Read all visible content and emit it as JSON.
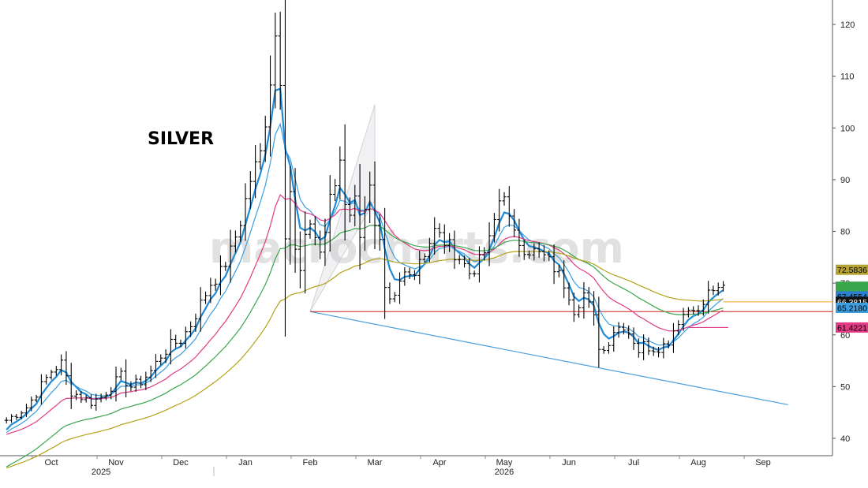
{
  "chart_data": {
    "type": "bar",
    "title": "SILVER",
    "watermark": "macrocharts.com",
    "ylim": [
      37.5,
      125
    ],
    "y_ticks": [
      40,
      50,
      60,
      70,
      80,
      90,
      100,
      110,
      120
    ],
    "x_month_labels": [
      {
        "label": "Oct",
        "week": 0
      },
      {
        "label": "Nov",
        "week": 13
      },
      {
        "label": "Dec",
        "week": 26
      },
      {
        "label": "Jan",
        "week": 39
      },
      {
        "label": "Feb",
        "week": 52
      },
      {
        "label": "Mar",
        "week": 65
      },
      {
        "label": "Apr",
        "week": 78
      },
      {
        "label": "May",
        "week": 91
      },
      {
        "label": "Jun",
        "week": 104
      },
      {
        "label": "Jul",
        "week": 117
      },
      {
        "label": "Aug",
        "week": 130
      },
      {
        "label": "Sep",
        "week": 143
      }
    ],
    "x_year_labels": [
      {
        "label": "2025",
        "week": 10
      },
      {
        "label": "2026",
        "week": 91
      }
    ],
    "price_anchors": [
      [
        -9,
        43.5
      ],
      [
        -5,
        46
      ],
      [
        0,
        53
      ],
      [
        2,
        54.5
      ],
      [
        4,
        49
      ],
      [
        6,
        48
      ],
      [
        8,
        47
      ],
      [
        10,
        48
      ],
      [
        12,
        50
      ],
      [
        14,
        52
      ],
      [
        16,
        50
      ],
      [
        18,
        51
      ],
      [
        20,
        53
      ],
      [
        22,
        56
      ],
      [
        24,
        58
      ],
      [
        26,
        59
      ],
      [
        28,
        62
      ],
      [
        30,
        66
      ],
      [
        32,
        70
      ],
      [
        34,
        72
      ],
      [
        36,
        76
      ],
      [
        38,
        82
      ],
      [
        40,
        90
      ],
      [
        42,
        95
      ],
      [
        43.5,
        105
      ],
      [
        44.5,
        114
      ],
      [
        45,
        118
      ],
      [
        46,
        110
      ],
      [
        47,
        80
      ],
      [
        48,
        88
      ],
      [
        49,
        76
      ],
      [
        50,
        72
      ],
      [
        51,
        78
      ],
      [
        52,
        82
      ],
      [
        53,
        79
      ],
      [
        54,
        76
      ],
      [
        55,
        80
      ],
      [
        56,
        86
      ],
      [
        57,
        89
      ],
      [
        58,
        94
      ],
      [
        59,
        86
      ],
      [
        60,
        84
      ],
      [
        61,
        86
      ],
      [
        62,
        80
      ],
      [
        63,
        85
      ],
      [
        64,
        88
      ],
      [
        65,
        80
      ],
      [
        66,
        77
      ],
      [
        67,
        68
      ],
      [
        68,
        66
      ],
      [
        69,
        67
      ],
      [
        70,
        70
      ],
      [
        71,
        72
      ],
      [
        72,
        73
      ],
      [
        73,
        72
      ],
      [
        74,
        75
      ],
      [
        75,
        76
      ],
      [
        76,
        78
      ],
      [
        77,
        80
      ],
      [
        78,
        79
      ],
      [
        80,
        77
      ],
      [
        82,
        75
      ],
      [
        84,
        72
      ],
      [
        86,
        74
      ],
      [
        88,
        78
      ],
      [
        90,
        86
      ],
      [
        91,
        88
      ],
      [
        92,
        82
      ],
      [
        93,
        79
      ],
      [
        95,
        77
      ],
      [
        97,
        76
      ],
      [
        99,
        75
      ],
      [
        101,
        73
      ],
      [
        103,
        70
      ],
      [
        104,
        68
      ],
      [
        105,
        65
      ],
      [
        107,
        68
      ],
      [
        109,
        63
      ],
      [
        110,
        58
      ],
      [
        111,
        57
      ],
      [
        112,
        59
      ],
      [
        113,
        61
      ],
      [
        115,
        62
      ],
      [
        117,
        59
      ],
      [
        118,
        57
      ],
      [
        119,
        58
      ],
      [
        121,
        57.5
      ],
      [
        123,
        58
      ],
      [
        124,
        59
      ],
      [
        125,
        61
      ],
      [
        126,
        63
      ],
      [
        127,
        64
      ],
      [
        128,
        65
      ],
      [
        129,
        66
      ],
      [
        130,
        64
      ],
      [
        131,
        66
      ],
      [
        132,
        68
      ],
      [
        133,
        69
      ],
      [
        134,
        68
      ],
      [
        135,
        69
      ]
    ],
    "price_seed": 7,
    "series": [
      {
        "name": "",
        "color": "#1f8ad6",
        "period": 4,
        "line_width": 2.2
      },
      {
        "name": "",
        "color": "#3a9ee0",
        "period": 8,
        "line_width": 1.2
      },
      {
        "name": "",
        "color": "#e23a84",
        "period": 19,
        "line_width": 1.2
      },
      {
        "name": "",
        "color": "#3aa64b",
        "period": 33,
        "line_width": 1.2
      },
      {
        "name": "",
        "color": "#b3a21a",
        "period": 56,
        "line_width": 1.2
      }
    ],
    "right_tags": [
      {
        "text": "72.5836",
        "value": 72.5836,
        "bg": "#b5a230",
        "fg": "#000000"
      },
      {
        "text": "",
        "value": 69.3,
        "bg": "#3aa64b",
        "fg": "#000000"
      },
      {
        "text": "67.4554",
        "value": 67.4554,
        "bg": "#2d7fd0",
        "fg": "#000000"
      },
      {
        "text": "66.3815",
        "value": 66.3815,
        "bg": "#111111",
        "fg": "#ffffff"
      },
      {
        "text": "65.2180",
        "value": 65.218,
        "bg": "#3a9ee0",
        "fg": "#000000"
      },
      {
        "text": "61.4221",
        "value": 61.4221,
        "bg": "#e23a84",
        "fg": "#000000"
      }
    ],
    "trendline": {
      "from": [
        52,
        64.5
      ],
      "to": [
        148,
        46.5
      ],
      "color": "#4a9ede"
    },
    "support_line": {
      "value": 64.5,
      "from_week": 52,
      "color": "#cc2222"
    },
    "last_price_line": {
      "value": 66.3815,
      "from_week": 135,
      "color": "#f0a020"
    },
    "pink_stub": {
      "value": 61.4221,
      "from_week": 128,
      "to_week": 136,
      "color": "#e23a84"
    },
    "shaded_flag": [
      [
        52,
        64.5
      ],
      [
        65,
        104.5
      ],
      [
        65,
        86
      ],
      [
        52,
        64.5
      ]
    ]
  }
}
